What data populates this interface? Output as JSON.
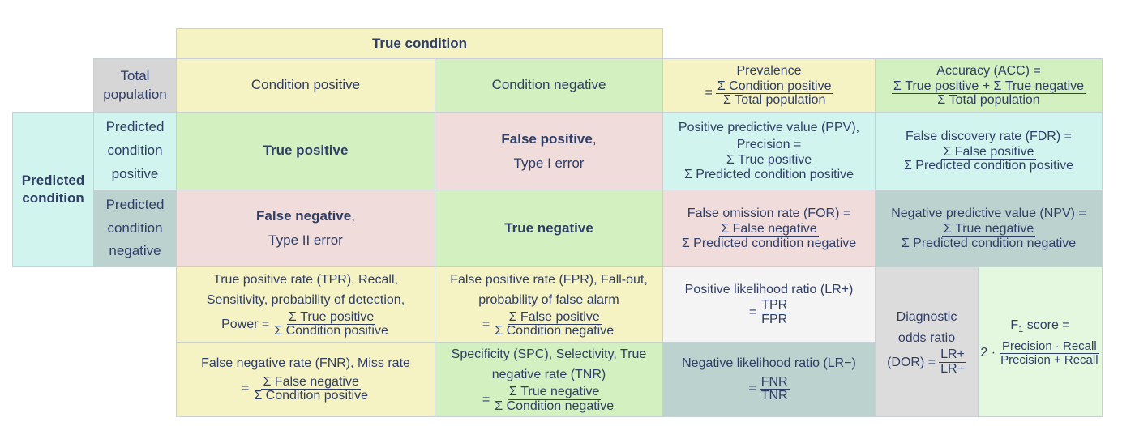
{
  "header": {
    "true_condition": "True condition",
    "total_population": "Total population",
    "condition_positive": "Condition positive",
    "condition_negative": "Condition negative"
  },
  "side": {
    "predicted_condition": "Predicted condition",
    "predicted_positive": "Predicted condition positive",
    "predicted_negative": "Predicted condition negative"
  },
  "matrix": {
    "tp": "True positive",
    "fp_bold": "False positive",
    "fp_rest": ",",
    "fp_sub": "Type I error",
    "fn_bold": "False negative",
    "fn_rest": ",",
    "fn_sub": "Type II error",
    "tn": "True negative"
  },
  "prevalence": {
    "label": "Prevalence",
    "eq": "=",
    "num": "Σ Condition positive",
    "den": "Σ Total population"
  },
  "accuracy": {
    "label": "Accuracy (ACC) =",
    "num": "Σ True positive + Σ True negative",
    "den": "Σ Total population"
  },
  "ppv": {
    "label1": "Positive predictive value (PPV),",
    "label2": "Precision =",
    "num": "Σ True positive",
    "den": "Σ Predicted condition positive"
  },
  "fdr": {
    "label": "False discovery rate (FDR) =",
    "num": "Σ False positive",
    "den": "Σ Predicted condition positive"
  },
  "for": {
    "label": "False omission rate (FOR) =",
    "num": "Σ False negative",
    "den": "Σ Predicted condition negative"
  },
  "npv": {
    "label": "Negative predictive value (NPV) =",
    "num": "Σ True negative",
    "den": "Σ Predicted condition negative"
  },
  "tpr": {
    "label1": "True positive rate (TPR), Recall,",
    "label2": "Sensitivity, probability of detection,",
    "prefix": "Power =",
    "num": "Σ True positive",
    "den": "Σ Condition positive"
  },
  "fpr": {
    "label1": "False positive rate (FPR), Fall-out,",
    "label2": "probability of false alarm",
    "prefix": "=",
    "num": "Σ False positive",
    "den": "Σ Condition negative"
  },
  "lrp": {
    "label": "Positive likelihood ratio (LR+)",
    "prefix": "=",
    "num": "TPR",
    "den": "FPR"
  },
  "dor": {
    "label1": "Diagnostic",
    "label2": "odds ratio",
    "prefix": "(DOR) =",
    "num": "LR+",
    "den": "LR−"
  },
  "f1": {
    "label_f": "F",
    "label_sub": "1",
    "label_rest": " score =",
    "prefix": "2 ·",
    "num": "Precision · Recall",
    "den": "Precision + Recall"
  },
  "fnr": {
    "label": "False negative rate (FNR), Miss rate",
    "prefix": "=",
    "num": "Σ False negative",
    "den": "Σ Condition positive"
  },
  "spc": {
    "label1": "Specificity (SPC), Selectivity, True",
    "label2": "negative rate (TNR)",
    "prefix": "=",
    "num": "Σ True negative",
    "den": "Σ Condition negative"
  },
  "lrn": {
    "label": "Negative likelihood ratio (LR−)",
    "prefix": "=",
    "num": "FNR",
    "den": "TNR"
  }
}
